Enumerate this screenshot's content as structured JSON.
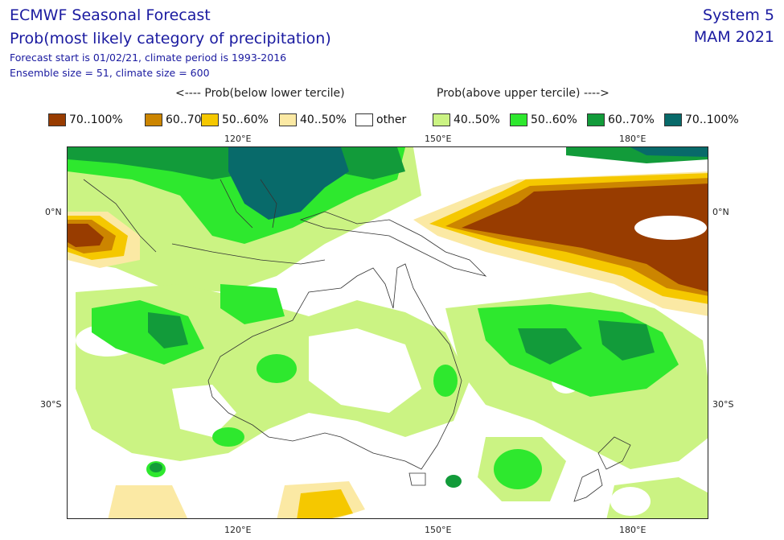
{
  "header": {
    "title_line1": "ECMWF Seasonal Forecast",
    "title_line2": "Prob(most likely category of precipitation)",
    "subtitle_line1": "Forecast start is 01/02/21, climate period is 1993-2016",
    "subtitle_line2": "Ensemble size = 51, climate size = 600",
    "system": "System 5",
    "season": "MAM 2021"
  },
  "legend": {
    "below_heading": "<---- Prob(below lower tercile)",
    "above_heading": "Prob(above upper tercile) ---->",
    "items": [
      {
        "label": "70..100%",
        "color": "#983c00"
      },
      {
        "label": "60..70%",
        "color": "#cc8500"
      },
      {
        "label": "50..60%",
        "color": "#f5c800"
      },
      {
        "label": "40..50%",
        "color": "#fbe9a4"
      },
      {
        "label": "other",
        "color": "#ffffff"
      },
      {
        "label": "40..50%",
        "color": "#cbf383"
      },
      {
        "label": "50..60%",
        "color": "#2ee82e"
      },
      {
        "label": "60..70%",
        "color": "#129b3a"
      },
      {
        "label": "70..100%",
        "color": "#086a6a"
      }
    ]
  },
  "axes": {
    "top": [
      "120°E",
      "150°E",
      "180°E"
    ],
    "bottom": [
      "120°E",
      "150°E",
      "180°E"
    ],
    "left": [
      "0°N",
      "30°S"
    ],
    "right": [
      "0°N",
      "30°S"
    ]
  },
  "colors": {
    "text": "#1a1aa0",
    "coastline": "#333333"
  }
}
